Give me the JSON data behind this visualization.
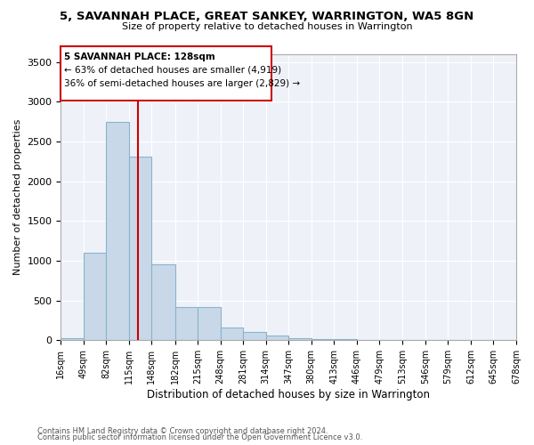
{
  "title": "5, SAVANNAH PLACE, GREAT SANKEY, WARRINGTON, WA5 8GN",
  "subtitle": "Size of property relative to detached houses in Warrington",
  "xlabel": "Distribution of detached houses by size in Warrington",
  "ylabel": "Number of detached properties",
  "footer1": "Contains HM Land Registry data © Crown copyright and database right 2024.",
  "footer2": "Contains public sector information licensed under the Open Government Licence v3.0.",
  "property_size": 128,
  "annotation_line1": "5 SAVANNAH PLACE: 128sqm",
  "annotation_line2": "← 63% of detached houses are smaller (4,919)",
  "annotation_line3": "36% of semi-detached houses are larger (2,829) →",
  "bar_color": "#c8d8e8",
  "bar_edge_color": "#8ab4cc",
  "vline_color": "#cc0000",
  "annotation_box_color": "#cc0000",
  "ylim": [
    0,
    3600
  ],
  "yticks": [
    0,
    500,
    1000,
    1500,
    2000,
    2500,
    3000,
    3500
  ],
  "bins": [
    16,
    49,
    82,
    115,
    148,
    182,
    215,
    248,
    281,
    314,
    347,
    380,
    413,
    446,
    479,
    513,
    546,
    579,
    612,
    645,
    678
  ],
  "bin_labels": [
    "16sqm",
    "49sqm",
    "82sqm",
    "115sqm",
    "148sqm",
    "182sqm",
    "215sqm",
    "248sqm",
    "281sqm",
    "314sqm",
    "347sqm",
    "380sqm",
    "413sqm",
    "446sqm",
    "479sqm",
    "513sqm",
    "546sqm",
    "579sqm",
    "612sqm",
    "645sqm",
    "678sqm"
  ],
  "counts": [
    30,
    1100,
    2750,
    2310,
    950,
    420,
    420,
    160,
    100,
    60,
    30,
    15,
    10,
    3,
    1,
    0,
    0,
    0,
    0,
    0
  ]
}
